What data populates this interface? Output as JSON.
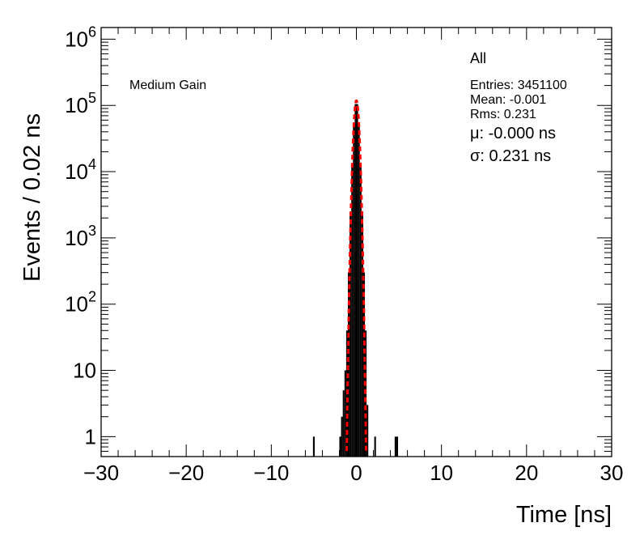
{
  "panel_label": "Medium Gain",
  "stats": {
    "title": "All",
    "entries": "Entries: 3451100",
    "mean": "Mean: -0.001",
    "rms": "Rms: 0.231",
    "mu": "μ: -0.000 ns",
    "sigma": "σ: 0.231 ns"
  },
  "chart_data": {
    "type": "bar",
    "xlabel": "Time [ns]",
    "ylabel": "Events / 0.02 ns",
    "xlim": [
      -30,
      30
    ],
    "ylim": [
      0.5,
      1500000
    ],
    "yscale": "log",
    "x_ticks": [
      "−30",
      "−20",
      "−10",
      "0",
      "10",
      "20",
      "30"
    ],
    "y_ticks": [
      {
        "value": 1,
        "base": "1",
        "exp": ""
      },
      {
        "value": 10,
        "base": "10",
        "exp": ""
      },
      {
        "value": 100,
        "base": "10",
        "exp": "2"
      },
      {
        "value": 1000,
        "base": "10",
        "exp": "3"
      },
      {
        "value": 10000,
        "base": "10",
        "exp": "4"
      },
      {
        "value": 100000,
        "base": "10",
        "exp": "5"
      },
      {
        "value": 1000000,
        "base": "10",
        "exp": "6"
      }
    ],
    "histogram": {
      "color": "#000000",
      "bins": [
        {
          "x": -5.0,
          "y": 1
        },
        {
          "x": -1.9,
          "y": 1
        },
        {
          "x": -1.7,
          "y": 2
        },
        {
          "x": -1.5,
          "y": 5
        },
        {
          "x": -1.3,
          "y": 10
        },
        {
          "x": -1.1,
          "y": 40
        },
        {
          "x": -0.9,
          "y": 300
        },
        {
          "x": -0.7,
          "y": 2500
        },
        {
          "x": -0.5,
          "y": 12000
        },
        {
          "x": -0.3,
          "y": 50000
        },
        {
          "x": -0.1,
          "y": 105000
        },
        {
          "x": 0.1,
          "y": 105000
        },
        {
          "x": 0.3,
          "y": 50000
        },
        {
          "x": 0.5,
          "y": 12000
        },
        {
          "x": 0.7,
          "y": 2500
        },
        {
          "x": 0.9,
          "y": 300
        },
        {
          "x": 1.1,
          "y": 40
        },
        {
          "x": 1.3,
          "y": 3
        },
        {
          "x": 2.2,
          "y": 1
        },
        {
          "x": 4.6,
          "y": 1
        },
        {
          "x": 4.8,
          "y": 1
        }
      ]
    },
    "fit": {
      "type": "gaussian",
      "color": "#ff0000",
      "amplitude": 118000,
      "mean": 0.0,
      "sigma": 0.231
    }
  }
}
